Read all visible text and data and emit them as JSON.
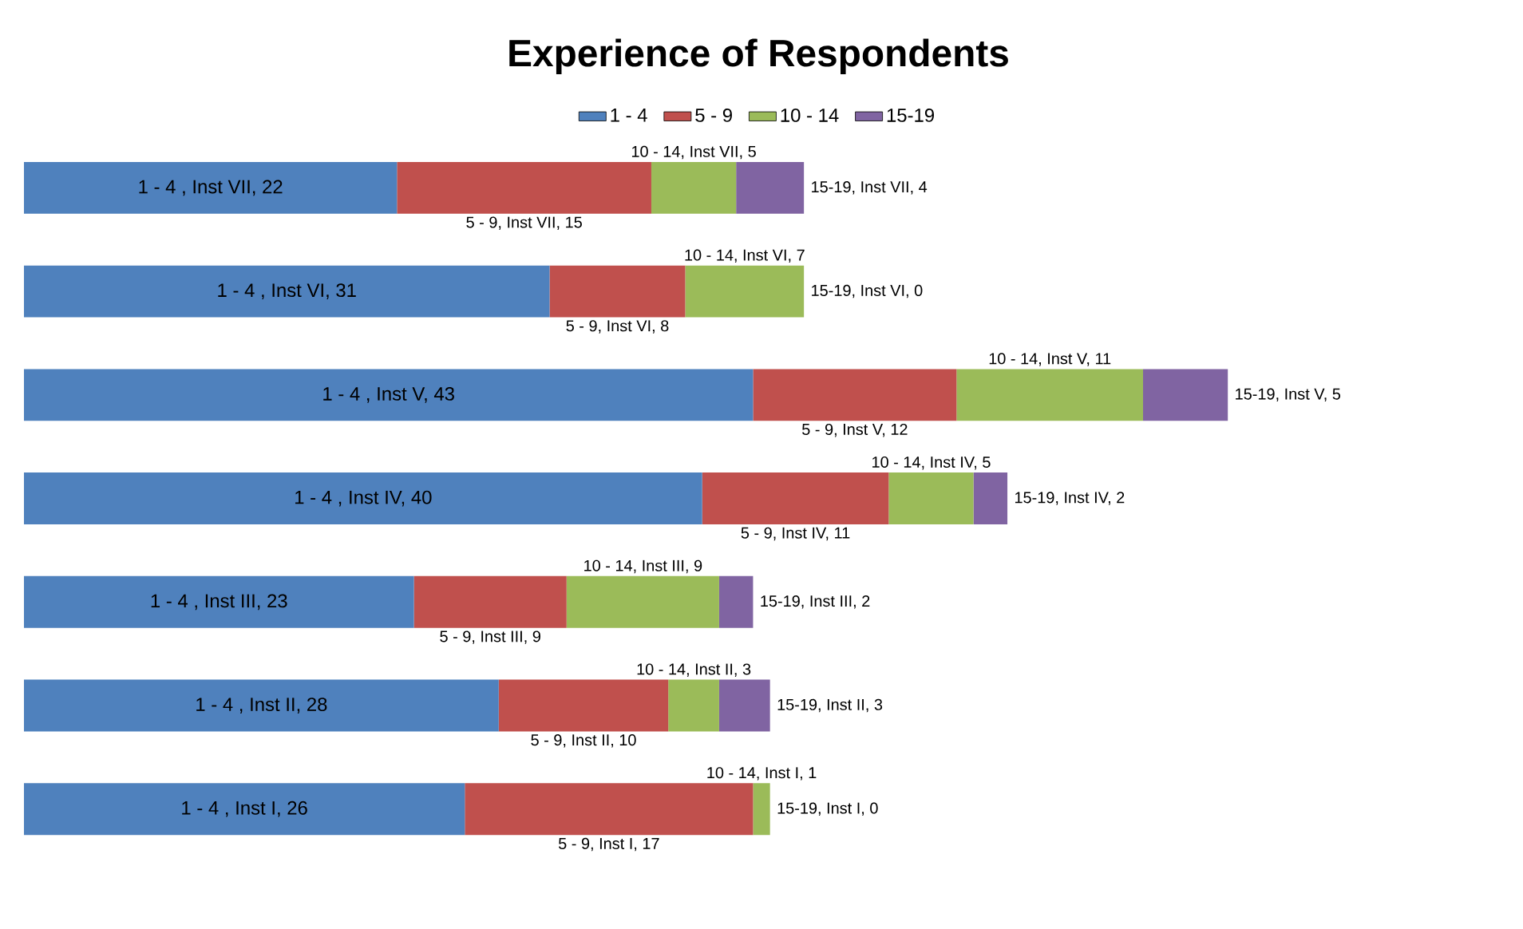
{
  "chart_data": {
    "type": "bar",
    "orientation": "horizontal",
    "stacked": true,
    "title": "Experience of Respondents",
    "categories": [
      null,
      null,
      null,
      null,
      null,
      null,
      null
    ],
    "series": [
      {
        "name": "1 - 4",
        "color": "#4f81bd",
        "values": [
          22,
          31,
          43,
          40,
          23,
          28,
          26
        ],
        "value_labels": [
          "1 - 4 , Inst VII, 22",
          "1 - 4 , Inst VI, 31",
          "1 - 4 , Inst V, 43",
          "1 - 4 , Inst IV, 40",
          "1 - 4 , Inst III, 23",
          "1 - 4 , Inst II, 28",
          "1 - 4 , Inst I, 26"
        ]
      },
      {
        "name": "5 - 9",
        "color": "#c0504d",
        "values": [
          15,
          8,
          12,
          11,
          9,
          10,
          17
        ],
        "value_labels": [
          "5 - 9, Inst VII, 15",
          "5 - 9, Inst VI, 8",
          "5 - 9, Inst V, 12",
          "5 - 9, Inst IV, 11",
          "5 - 9, Inst III, 9",
          "5 - 9, Inst II, 10",
          "5 - 9, Inst I, 17"
        ]
      },
      {
        "name": "10 - 14",
        "color": "#9bbb59",
        "values": [
          5,
          7,
          11,
          5,
          9,
          3,
          1
        ],
        "value_labels": [
          "10 - 14, Inst VII, 5",
          "10 - 14, Inst VI, 7",
          "10 - 14, Inst V, 11",
          "10 - 14, Inst IV, 5",
          "10 - 14, Inst III, 9",
          "10 - 14, Inst II, 3",
          "10 - 14, Inst I, 1"
        ]
      },
      {
        "name": "15-19",
        "color": "#8064a2",
        "values": [
          4,
          0,
          5,
          2,
          2,
          3,
          0
        ],
        "value_labels": [
          "15-19, Inst VII, 4",
          "15-19, Inst VI, 0",
          "15-19, Inst V, 5",
          "15-19, Inst IV, 2",
          "15-19, Inst III, 2",
          "15-19, Inst II, 3",
          "15-19, Inst I, 0"
        ]
      }
    ],
    "legend": "top"
  }
}
